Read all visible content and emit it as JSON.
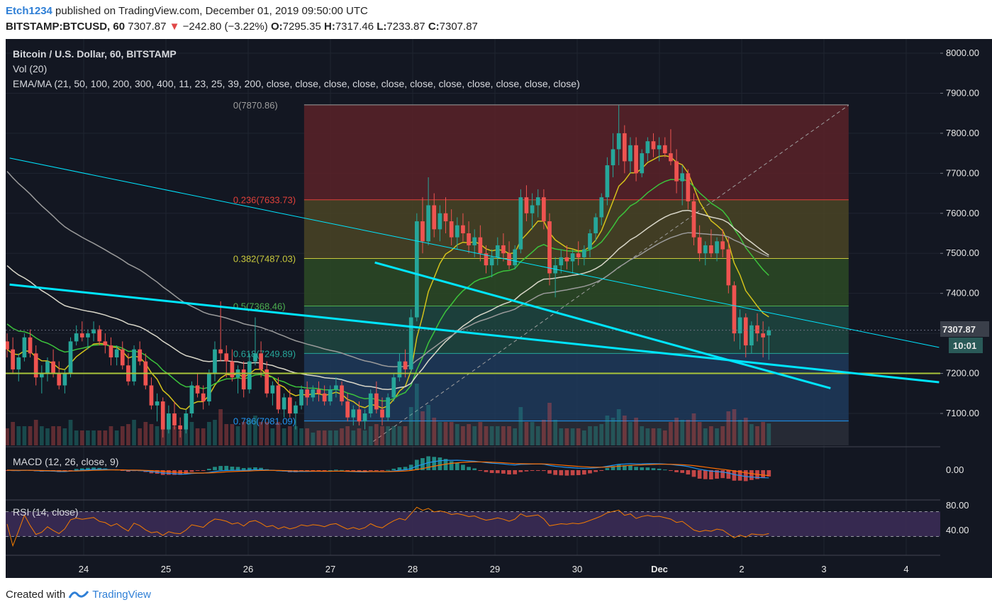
{
  "header": {
    "user": "Etch1234",
    "published_text": "published on TradingView.com, December 01, 2019 09:50:00 UTC",
    "symbol": "BITSTAMP:BTCUSD, 60",
    "last": "7307.87",
    "arrow": "▼",
    "change": "−242.80 (−3.22%)",
    "open_label": "O:",
    "open": "7295.35",
    "high_label": "H:",
    "high": "7317.46",
    "low_label": "L:",
    "low": "7233.87",
    "close_label": "C:",
    "close": "7307.87"
  },
  "legend": {
    "title": "Bitcoin / U.S. Dollar, 60, BITSTAMP",
    "vol": "Vol (20)",
    "ema": "EMA/MA (21, 50, 100, 200, 300, 400, 11, 23, 25, 39, 200, close, close, close, close, close, close, close, close, close, close, close)",
    "macd": "MACD (12, 26, close, 9)",
    "rsi": "RSI (14, close)"
  },
  "footer": {
    "created": "Created with",
    "brand": "TradingView"
  },
  "colors": {
    "background": "#131722",
    "up": "#26a69a",
    "down": "#ef5350",
    "trendline": "#00e5ff",
    "ema_yellow": "#d4c21b",
    "ema_green": "#3cc33c",
    "ema_white": "#d8d6c8",
    "ema_gray": "#9a9a9a",
    "rsi_line": "#f57c00",
    "rsi_band": "#3b2b55",
    "price_label": "#3a3f4a",
    "fib_top": "#5a2228"
  },
  "chart_data": {
    "type": "candlestick",
    "title": "Bitcoin / U.S. Dollar, 60, BITSTAMP",
    "price_range": [
      7030,
      8030
    ],
    "y_ticks": [
      7100,
      7200,
      7300,
      7400,
      7500,
      7600,
      7700,
      7800,
      7900,
      8000
    ],
    "y_tick_labels": [
      "7100.00",
      "7200.00",
      "7300.00",
      "7400.00",
      "7500.00",
      "7600.00",
      "7700.00",
      "7800.00",
      "7900.00",
      "8000.00"
    ],
    "x_ticks": [
      "24",
      "25",
      "26",
      "27",
      "28",
      "29",
      "30",
      "Dec",
      "2",
      "3",
      "4"
    ],
    "x_range_days": [
      23.1,
      34.4
    ],
    "last_price": "7307.87",
    "countdown": "10:01",
    "horizontal_level": 7200,
    "fibonacci": {
      "start_day": 26.68,
      "end_day": 33.3,
      "levels": [
        {
          "ratio": "0",
          "price": 7870.86,
          "label": "0(7870.86)",
          "color": "#9e9e9e",
          "fill": "#5a2228"
        },
        {
          "ratio": "0.236",
          "price": 7633.73,
          "label": "0.236(7633.73)",
          "color": "#e0403a",
          "fill": "#4a4424"
        },
        {
          "ratio": "0.382",
          "price": 7487.03,
          "label": "0.382(7487.03)",
          "color": "#c8c83c",
          "fill": "#2d4a24"
        },
        {
          "ratio": "0.5",
          "price": 7368.46,
          "label": "0.5(7368.46)",
          "color": "#4caf50",
          "fill": "#1e4640"
        },
        {
          "ratio": "0.618",
          "price": 7249.89,
          "label": "0.618(7249.89)",
          "color": "#26a69a",
          "fill": "#1e3a5a"
        },
        {
          "ratio": "0.786",
          "price": 7081.09,
          "label": "0.786(7081.09)",
          "color": "#2196f3",
          "fill": "#2a2e38"
        },
        {
          "ratio": "1",
          "price": 6988.0,
          "label": "",
          "color": "#787b86",
          "fill": "#2a2e38"
        }
      ]
    },
    "trendlines": [
      {
        "name": "thin-upper",
        "points": [
          [
            23.1,
            7738
          ],
          [
            34.4,
            7265
          ]
        ],
        "width": 1
      },
      {
        "name": "thick-lower",
        "points": [
          [
            23.1,
            7422
          ],
          [
            34.4,
            7178
          ]
        ],
        "width": 3
      },
      {
        "name": "thick-descending",
        "points": [
          [
            27.54,
            7477
          ],
          [
            33.08,
            7163
          ]
        ],
        "width": 3
      }
    ],
    "fib_diagonal": {
      "points": [
        [
          27.52,
          7030
        ],
        [
          33.3,
          7870
        ]
      ]
    },
    "candles_ohlc": [
      [
        7280,
        7300,
        7240,
        7260
      ],
      [
        7260,
        7290,
        7200,
        7210
      ],
      [
        7210,
        7250,
        7180,
        7240
      ],
      [
        7240,
        7300,
        7230,
        7290
      ],
      [
        7290,
        7310,
        7240,
        7250
      ],
      [
        7250,
        7270,
        7170,
        7190
      ],
      [
        7190,
        7220,
        7150,
        7200
      ],
      [
        7200,
        7240,
        7180,
        7230
      ],
      [
        7230,
        7260,
        7190,
        7200
      ],
      [
        7200,
        7230,
        7160,
        7170
      ],
      [
        7170,
        7210,
        7150,
        7200
      ],
      [
        7200,
        7290,
        7190,
        7280
      ],
      [
        7280,
        7320,
        7270,
        7300
      ],
      [
        7300,
        7330,
        7280,
        7290
      ],
      [
        7290,
        7310,
        7260,
        7300
      ],
      [
        7300,
        7330,
        7280,
        7310
      ],
      [
        7310,
        7320,
        7270,
        7280
      ],
      [
        7280,
        7300,
        7250,
        7270
      ],
      [
        7270,
        7290,
        7220,
        7240
      ],
      [
        7240,
        7270,
        7220,
        7260
      ],
      [
        7260,
        7280,
        7210,
        7220
      ],
      [
        7220,
        7250,
        7170,
        7180
      ],
      [
        7180,
        7270,
        7170,
        7260
      ],
      [
        7260,
        7280,
        7220,
        7230
      ],
      [
        7230,
        7250,
        7160,
        7170
      ],
      [
        7170,
        7190,
        7110,
        7120
      ],
      [
        7120,
        7150,
        7080,
        7130
      ],
      [
        7130,
        7140,
        7040,
        7060
      ],
      [
        7060,
        7120,
        7050,
        7100
      ],
      [
        7100,
        7130,
        7060,
        7070
      ],
      [
        7070,
        7090,
        7040,
        7060
      ],
      [
        7060,
        7110,
        7050,
        7100
      ],
      [
        7100,
        7180,
        7090,
        7170
      ],
      [
        7170,
        7200,
        7140,
        7150
      ],
      [
        7150,
        7170,
        7110,
        7130
      ],
      [
        7130,
        7210,
        7120,
        7200
      ],
      [
        7200,
        7280,
        7180,
        7260
      ],
      [
        7260,
        7380,
        7230,
        7250
      ],
      [
        7250,
        7270,
        7190,
        7230
      ],
      [
        7230,
        7260,
        7180,
        7190
      ],
      [
        7190,
        7220,
        7150,
        7210
      ],
      [
        7210,
        7230,
        7140,
        7160
      ],
      [
        7160,
        7250,
        7150,
        7230
      ],
      [
        7230,
        7340,
        7220,
        7250
      ],
      [
        7250,
        7280,
        7190,
        7210
      ],
      [
        7210,
        7230,
        7140,
        7150
      ],
      [
        7150,
        7180,
        7120,
        7170
      ],
      [
        7170,
        7190,
        7100,
        7110
      ],
      [
        7110,
        7150,
        7090,
        7140
      ],
      [
        7140,
        7160,
        7090,
        7100
      ],
      [
        7100,
        7130,
        7060,
        7120
      ],
      [
        7120,
        7170,
        7110,
        7160
      ],
      [
        7160,
        7180,
        7120,
        7140
      ],
      [
        7140,
        7170,
        7130,
        7160
      ],
      [
        7160,
        7180,
        7130,
        7150
      ],
      [
        7150,
        7170,
        7120,
        7130
      ],
      [
        7130,
        7170,
        7120,
        7160
      ],
      [
        7160,
        7190,
        7140,
        7170
      ],
      [
        7170,
        7180,
        7120,
        7130
      ],
      [
        7130,
        7150,
        7080,
        7090
      ],
      [
        7090,
        7120,
        7070,
        7110
      ],
      [
        7110,
        7130,
        7070,
        7080
      ],
      [
        7080,
        7110,
        7060,
        7100
      ],
      [
        7100,
        7160,
        7090,
        7150
      ],
      [
        7150,
        7180,
        7100,
        7110
      ],
      [
        7110,
        7140,
        7070,
        7090
      ],
      [
        7090,
        7150,
        7080,
        7140
      ],
      [
        7140,
        7200,
        7130,
        7190
      ],
      [
        7190,
        7250,
        7180,
        7230
      ],
      [
        7230,
        7260,
        7190,
        7210
      ],
      [
        7210,
        7360,
        7200,
        7340
      ],
      [
        7340,
        7600,
        7330,
        7580
      ],
      [
        7580,
        7640,
        7500,
        7530
      ],
      [
        7530,
        7690,
        7520,
        7620
      ],
      [
        7620,
        7650,
        7540,
        7560
      ],
      [
        7560,
        7620,
        7530,
        7600
      ],
      [
        7600,
        7640,
        7550,
        7580
      ],
      [
        7580,
        7610,
        7520,
        7540
      ],
      [
        7540,
        7590,
        7510,
        7570
      ],
      [
        7570,
        7600,
        7530,
        7550
      ],
      [
        7550,
        7580,
        7500,
        7520
      ],
      [
        7520,
        7560,
        7490,
        7540
      ],
      [
        7540,
        7570,
        7480,
        7500
      ],
      [
        7500,
        7520,
        7450,
        7470
      ],
      [
        7470,
        7510,
        7440,
        7490
      ],
      [
        7490,
        7540,
        7470,
        7520
      ],
      [
        7520,
        7550,
        7480,
        7500
      ],
      [
        7500,
        7530,
        7460,
        7470
      ],
      [
        7470,
        7520,
        7460,
        7510
      ],
      [
        7510,
        7660,
        7500,
        7640
      ],
      [
        7640,
        7670,
        7580,
        7600
      ],
      [
        7600,
        7650,
        7560,
        7620
      ],
      [
        7620,
        7660,
        7590,
        7640
      ],
      [
        7640,
        7660,
        7560,
        7580
      ],
      [
        7580,
        7600,
        7420,
        7450
      ],
      [
        7450,
        7490,
        7390,
        7470
      ],
      [
        7470,
        7510,
        7450,
        7490
      ],
      [
        7490,
        7520,
        7460,
        7480
      ],
      [
        7480,
        7510,
        7450,
        7500
      ],
      [
        7500,
        7530,
        7470,
        7490
      ],
      [
        7490,
        7520,
        7470,
        7510
      ],
      [
        7510,
        7560,
        7490,
        7550
      ],
      [
        7550,
        7600,
        7530,
        7590
      ],
      [
        7590,
        7650,
        7570,
        7640
      ],
      [
        7640,
        7740,
        7620,
        7720
      ],
      [
        7720,
        7800,
        7690,
        7760
      ],
      [
        7760,
        7870,
        7720,
        7800
      ],
      [
        7800,
        7820,
        7700,
        7730
      ],
      [
        7730,
        7790,
        7700,
        7770
      ],
      [
        7770,
        7790,
        7680,
        7700
      ],
      [
        7700,
        7760,
        7690,
        7750
      ],
      [
        7750,
        7790,
        7730,
        7780
      ],
      [
        7780,
        7800,
        7740,
        7760
      ],
      [
        7760,
        7790,
        7730,
        7770
      ],
      [
        7770,
        7790,
        7740,
        7750
      ],
      [
        7750,
        7810,
        7720,
        7730
      ],
      [
        7730,
        7760,
        7650,
        7680
      ],
      [
        7680,
        7720,
        7620,
        7700
      ],
      [
        7700,
        7710,
        7610,
        7630
      ],
      [
        7630,
        7650,
        7520,
        7540
      ],
      [
        7540,
        7570,
        7480,
        7500
      ],
      [
        7500,
        7530,
        7470,
        7520
      ],
      [
        7520,
        7560,
        7490,
        7500
      ],
      [
        7500,
        7540,
        7480,
        7530
      ],
      [
        7530,
        7560,
        7490,
        7510
      ],
      [
        7510,
        7540,
        7400,
        7420
      ],
      [
        7420,
        7430,
        7280,
        7300
      ],
      [
        7300,
        7360,
        7260,
        7340
      ],
      [
        7340,
        7350,
        7240,
        7270
      ],
      [
        7270,
        7330,
        7250,
        7320
      ],
      [
        7320,
        7350,
        7280,
        7300
      ],
      [
        7300,
        7330,
        7240,
        7290
      ],
      [
        7295,
        7317,
        7234,
        7308
      ]
    ],
    "macd": {
      "label": "MACD (12, 26, close, 9)",
      "y_ticks": [
        "0.00"
      ]
    },
    "rsi": {
      "label": "RSI (14, close)",
      "y_ticks": [
        "80.00",
        "40.00"
      ],
      "band": [
        30,
        70
      ],
      "range": [
        10,
        90
      ]
    }
  }
}
